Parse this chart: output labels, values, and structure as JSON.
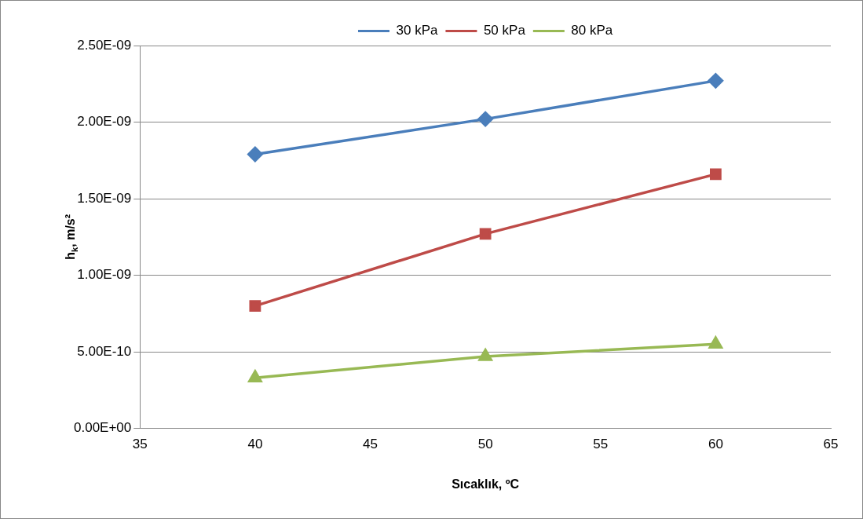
{
  "chart_data": {
    "type": "line",
    "xlabel": "Sıcaklık, ºC",
    "ylabel": "h$_{k}$, m/s²",
    "x": [
      40,
      50,
      60
    ],
    "series": [
      {
        "name": "30 kPa",
        "color": "#4a7ebb",
        "marker": "diamond",
        "values": [
          1.79e-09,
          2.02e-09,
          2.27e-09
        ]
      },
      {
        "name": "50 kPa",
        "color": "#be4b48",
        "marker": "square",
        "values": [
          8e-10,
          1.27e-09,
          1.66e-09
        ]
      },
      {
        "name": "80 kPa",
        "color": "#98b954",
        "marker": "triangle",
        "values": [
          3.3e-10,
          4.7e-10,
          5.5e-10
        ]
      }
    ],
    "xlim": [
      35,
      65
    ],
    "xticks": [
      35,
      40,
      45,
      50,
      55,
      60,
      65
    ],
    "ylim": [
      0,
      2.5e-09
    ],
    "yticks": [
      {
        "value": 0,
        "label": "0.00E+00"
      },
      {
        "value": 5e-10,
        "label": "5.00E-10"
      },
      {
        "value": 1e-09,
        "label": "1.00E-09"
      },
      {
        "value": 1.5e-09,
        "label": "1.50E-09"
      },
      {
        "value": 2e-09,
        "label": "2.00E-09"
      },
      {
        "value": 2.5e-09,
        "label": "2.50E-09"
      }
    ],
    "grid": "y",
    "legend": "top",
    "line_style": "solid"
  }
}
